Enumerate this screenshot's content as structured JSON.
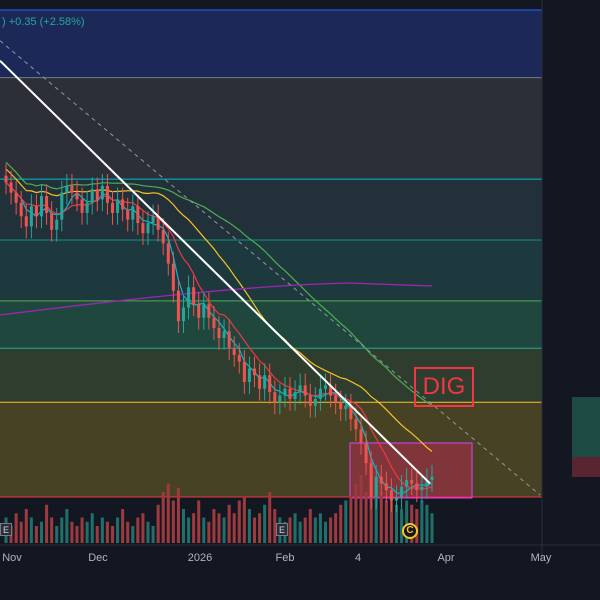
{
  "legend": {
    "text": ") +0.35 (+2.58%)"
  },
  "annotation": {
    "label": "DIG"
  },
  "badges": {
    "circle": "C",
    "earnings": [
      "E",
      "E"
    ]
  },
  "colors": {
    "up": "#26a69a",
    "down": "#ef5350",
    "trendline": "#ffffff",
    "ema_fast": "#00bcd4",
    "ema_mid": "#f23645",
    "ema_slow": "#f7c325",
    "sma_long": "#4caf50",
    "sma_xlong": "#9c27b0",
    "zone": "#e91e63"
  },
  "chart_data": {
    "type": "candlestick",
    "x_ticks": [
      "Nov",
      "Dec",
      "2026",
      "Feb",
      "4",
      "Apr",
      "May"
    ],
    "candles_close": [
      16.9,
      16.6,
      16.3,
      15.9,
      15.6,
      16.2,
      15.9,
      16.5,
      16.0,
      15.5,
      15.8,
      16.6,
      16.8,
      16.6,
      16.4,
      16.0,
      16.3,
      16.7,
      16.4,
      16.8,
      16.3,
      16.0,
      16.4,
      16.1,
      15.8,
      16.2,
      15.7,
      15.4,
      15.7,
      15.9,
      15.5,
      15.1,
      14.5,
      13.7,
      12.8,
      13.2,
      13.8,
      13.3,
      12.9,
      13.3,
      12.9,
      12.6,
      12.3,
      12.5,
      12.0,
      11.8,
      11.6,
      11.0,
      11.4,
      11.2,
      10.8,
      11.2,
      10.7,
      10.4,
      10.6,
      10.8,
      10.5,
      10.7,
      10.9,
      10.6,
      10.3,
      10.5,
      10.8,
      10.9,
      10.6,
      10.4,
      10.2,
      10.3,
      9.9,
      9.6,
      9.2,
      8.6,
      7.6,
      8.2,
      8.0,
      7.8,
      7.5,
      7.6,
      7.9,
      8.1,
      8.0,
      7.8,
      7.9,
      8.1,
      8.2
    ],
    "volume_relative": [
      0.3,
      0.2,
      0.35,
      0.25,
      0.4,
      0.3,
      0.2,
      0.25,
      0.45,
      0.3,
      0.2,
      0.3,
      0.4,
      0.25,
      0.2,
      0.3,
      0.25,
      0.35,
      0.2,
      0.3,
      0.25,
      0.2,
      0.3,
      0.4,
      0.25,
      0.2,
      0.3,
      0.35,
      0.25,
      0.2,
      0.45,
      0.6,
      0.7,
      0.5,
      0.65,
      0.4,
      0.3,
      0.35,
      0.5,
      0.3,
      0.25,
      0.4,
      0.35,
      0.3,
      0.45,
      0.35,
      0.5,
      0.55,
      0.4,
      0.3,
      0.35,
      0.45,
      0.6,
      0.4,
      0.3,
      0.25,
      0.3,
      0.35,
      0.25,
      0.3,
      0.4,
      0.3,
      0.35,
      0.25,
      0.3,
      0.35,
      0.45,
      0.5,
      0.55,
      0.7,
      0.8,
      0.6,
      1.0,
      0.7,
      0.6,
      0.5,
      0.55,
      0.45,
      0.4,
      0.5,
      0.45,
      0.4,
      0.5,
      0.45,
      0.35
    ],
    "fib_levels": [
      22.0,
      20.0,
      17.0,
      15.2,
      13.4,
      12.0,
      10.4,
      7.6
    ],
    "trendline": {
      "from": 20.5,
      "to": 8.0
    }
  }
}
